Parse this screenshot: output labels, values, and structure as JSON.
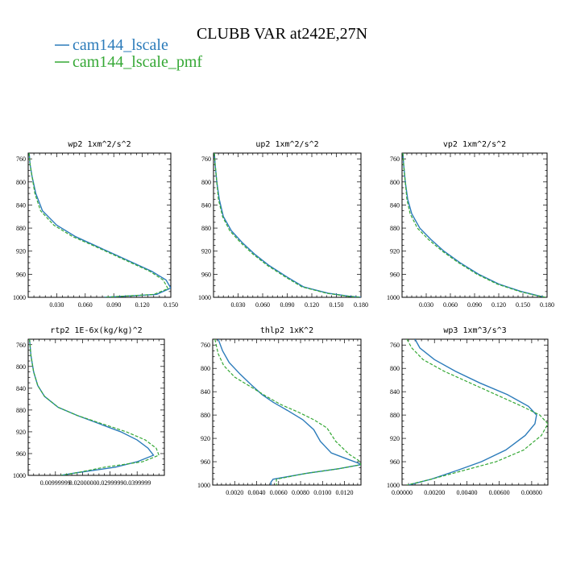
{
  "title": "CLUBB VAR at242E,27N",
  "colors": {
    "cam144_lscale": "#2b7bba",
    "cam144_lscale_pmf": "#35a835"
  },
  "legend": [
    {
      "name": "cam144_lscale",
      "color": "#2b7bba",
      "dash": "solid"
    },
    {
      "name": "cam144_lscale_pmf",
      "color": "#35a835",
      "dash": "dashed"
    }
  ],
  "chart_data": [
    {
      "type": "line",
      "title": "wp2  1xm^2/s^2",
      "xlim": [
        0,
        0.15
      ],
      "ylim": [
        1000,
        750
      ],
      "y_axis": "pressure",
      "xticks": [
        "0.030",
        "0.060",
        "0.090",
        "0.120",
        "0.150"
      ],
      "xtick_values": [
        0.03,
        0.06,
        0.09,
        0.12,
        0.15
      ],
      "yticks": [
        760,
        800,
        840,
        880,
        920,
        960,
        1000
      ],
      "series": [
        {
          "name": "cam144_lscale",
          "x": [
            0.001,
            0.002,
            0.004,
            0.008,
            0.015,
            0.03,
            0.05,
            0.07,
            0.09,
            0.11,
            0.13,
            0.145,
            0.15,
            0.135,
            0.08
          ],
          "y": [
            750,
            770,
            790,
            820,
            850,
            875,
            895,
            910,
            925,
            940,
            955,
            970,
            984,
            995,
            1000
          ]
        },
        {
          "name": "cam144_lscale_pmf",
          "x": [
            0.001,
            0.002,
            0.004,
            0.007,
            0.013,
            0.027,
            0.047,
            0.068,
            0.088,
            0.108,
            0.128,
            0.142,
            0.147,
            0.132,
            0.08
          ],
          "y": [
            750,
            770,
            790,
            820,
            850,
            875,
            895,
            910,
            925,
            940,
            955,
            970,
            985,
            995,
            1000
          ]
        }
      ]
    },
    {
      "type": "line",
      "title": "up2  1xm^2/s^2",
      "xlim": [
        0,
        0.18
      ],
      "ylim": [
        1000,
        750
      ],
      "y_axis": "pressure",
      "xticks": [
        "0.030",
        "0.060",
        "0.090",
        "0.120",
        "0.150",
        "0.180"
      ],
      "xtick_values": [
        0.03,
        0.06,
        0.09,
        0.12,
        0.15,
        0.18
      ],
      "yticks": [
        760,
        800,
        840,
        880,
        920,
        960,
        1000
      ],
      "series": [
        {
          "name": "cam144_lscale",
          "x": [
            0.001,
            0.002,
            0.004,
            0.007,
            0.012,
            0.022,
            0.035,
            0.05,
            0.068,
            0.09,
            0.11,
            0.14,
            0.165,
            0.18
          ],
          "y": [
            750,
            770,
            800,
            830,
            860,
            885,
            905,
            925,
            945,
            965,
            982,
            993,
            998,
            1000
          ]
        },
        {
          "name": "cam144_lscale_pmf",
          "x": [
            0.001,
            0.002,
            0.004,
            0.006,
            0.011,
            0.02,
            0.033,
            0.048,
            0.066,
            0.088,
            0.108,
            0.138,
            0.163,
            0.178
          ],
          "y": [
            750,
            770,
            800,
            830,
            860,
            885,
            905,
            925,
            945,
            965,
            982,
            993,
            998,
            1000
          ]
        }
      ]
    },
    {
      "type": "line",
      "title": "vp2  1xm^2/s^2",
      "xlim": [
        0,
        0.18
      ],
      "ylim": [
        1000,
        750
      ],
      "y_axis": "pressure",
      "xticks": [
        "0.030",
        "0.060",
        "0.090",
        "0.120",
        "0.150",
        "0.180"
      ],
      "xtick_values": [
        0.03,
        0.06,
        0.09,
        0.12,
        0.15,
        0.18
      ],
      "yticks": [
        760,
        800,
        840,
        880,
        920,
        960,
        1000
      ],
      "series": [
        {
          "name": "cam144_lscale",
          "x": [
            0.001,
            0.002,
            0.004,
            0.007,
            0.012,
            0.022,
            0.036,
            0.052,
            0.072,
            0.095,
            0.12,
            0.148,
            0.168,
            0.178
          ],
          "y": [
            750,
            770,
            800,
            830,
            855,
            880,
            900,
            920,
            940,
            960,
            977,
            990,
            997,
            1000
          ]
        },
        {
          "name": "cam144_lscale_pmf",
          "x": [
            0.001,
            0.002,
            0.004,
            0.006,
            0.01,
            0.019,
            0.033,
            0.05,
            0.07,
            0.093,
            0.118,
            0.146,
            0.167,
            0.178
          ],
          "y": [
            750,
            770,
            800,
            830,
            855,
            880,
            900,
            920,
            940,
            960,
            977,
            990,
            997,
            1000
          ]
        }
      ]
    },
    {
      "type": "line",
      "title": "rtp2  1E-6x(kg/kg)^2",
      "xlim": [
        0,
        0.05
      ],
      "ylim": [
        1000,
        750
      ],
      "y_axis": "pressure",
      "xticks": [
        "0.00999999",
        "0.0200000",
        "0.0299999",
        "0.0399999"
      ],
      "xtick_values": [
        0.01,
        0.02,
        0.03,
        0.04
      ],
      "yticks": [
        760,
        800,
        840,
        880,
        920,
        960,
        1000
      ],
      "series": [
        {
          "name": "cam144_lscale",
          "x": [
            0.0005,
            0.001,
            0.002,
            0.0035,
            0.006,
            0.011,
            0.018,
            0.026,
            0.034,
            0.04,
            0.044,
            0.046,
            0.04,
            0.032,
            0.018,
            0.012
          ],
          "y": [
            750,
            780,
            810,
            835,
            855,
            875,
            890,
            905,
            920,
            935,
            950,
            963,
            975,
            985,
            995,
            1000
          ]
        },
        {
          "name": "cam144_lscale_pmf",
          "x": [
            0.0005,
            0.001,
            0.002,
            0.0035,
            0.006,
            0.011,
            0.018,
            0.027,
            0.036,
            0.043,
            0.047,
            0.048,
            0.042,
            0.028,
            0.018,
            0.012
          ],
          "y": [
            750,
            780,
            810,
            835,
            855,
            875,
            890,
            905,
            920,
            935,
            950,
            963,
            975,
            985,
            995,
            1000
          ]
        }
      ]
    },
    {
      "type": "line",
      "title": "thlp2  1xK^2",
      "xlim": [
        0,
        0.0135
      ],
      "ylim": [
        1000,
        750
      ],
      "y_axis": "pressure",
      "xticks": [
        "0.0020",
        "0.0040",
        "0.0060",
        "0.0080",
        "0.0100",
        "0.0120"
      ],
      "xtick_values": [
        0.002,
        0.004,
        0.006,
        0.008,
        0.01,
        0.012
      ],
      "yticks": [
        760,
        800,
        840,
        880,
        920,
        960,
        1000
      ],
      "series": [
        {
          "name": "cam144_lscale",
          "x": [
            0.0005,
            0.0009,
            0.0015,
            0.0025,
            0.0035,
            0.0045,
            0.0055,
            0.0068,
            0.0082,
            0.0092,
            0.0098,
            0.0108,
            0.0122,
            0.0132,
            0.0135,
            0.0115,
            0.0085,
            0.0055,
            0.0053,
            0.0053
          ],
          "y": [
            750,
            770,
            790,
            810,
            828,
            845,
            858,
            872,
            888,
            905,
            925,
            945,
            955,
            962,
            965,
            972,
            980,
            990,
            995,
            1000
          ]
        },
        {
          "name": "cam144_lscale_pmf",
          "x": [
            0.0002,
            0.0005,
            0.001,
            0.002,
            0.0035,
            0.0048,
            0.0062,
            0.0078,
            0.0092,
            0.0104,
            0.0112,
            0.0124,
            0.0133,
            0.0135,
            0.0115,
            0.0085,
            0.0058,
            0.0058
          ],
          "y": [
            750,
            775,
            795,
            815,
            832,
            847,
            862,
            875,
            888,
            902,
            925,
            947,
            958,
            965,
            972,
            980,
            990,
            1000
          ]
        }
      ]
    },
    {
      "type": "line",
      "title": "wp3  1xm^3/s^3",
      "xlim": [
        0,
        0.009
      ],
      "ylim": [
        1000,
        750
      ],
      "y_axis": "pressure",
      "xticks": [
        "0.00000",
        "0.00200",
        "0.00400",
        "0.00600",
        "0.00800"
      ],
      "xtick_values": [
        0.0,
        0.002,
        0.004,
        0.006,
        0.008
      ],
      "yticks": [
        760,
        800,
        840,
        880,
        920,
        960,
        1000
      ],
      "series": [
        {
          "name": "cam144_lscale",
          "x": [
            0.0008,
            0.0011,
            0.002,
            0.0033,
            0.0048,
            0.0065,
            0.0078,
            0.0083,
            0.0082,
            0.0076,
            0.0064,
            0.0049,
            0.0034,
            0.0018,
            0.0004
          ],
          "y": [
            750,
            765,
            785,
            805,
            825,
            845,
            865,
            880,
            895,
            915,
            940,
            960,
            975,
            990,
            1000
          ]
        },
        {
          "name": "cam144_lscale_pmf",
          "x": [
            0.0003,
            0.0006,
            0.0013,
            0.0026,
            0.0042,
            0.0058,
            0.0074,
            0.0085,
            0.009,
            0.0086,
            0.0075,
            0.0058,
            0.0038,
            0.0018,
            0.0003
          ],
          "y": [
            750,
            765,
            785,
            805,
            825,
            845,
            865,
            880,
            895,
            915,
            940,
            960,
            975,
            990,
            1000
          ]
        }
      ]
    }
  ]
}
